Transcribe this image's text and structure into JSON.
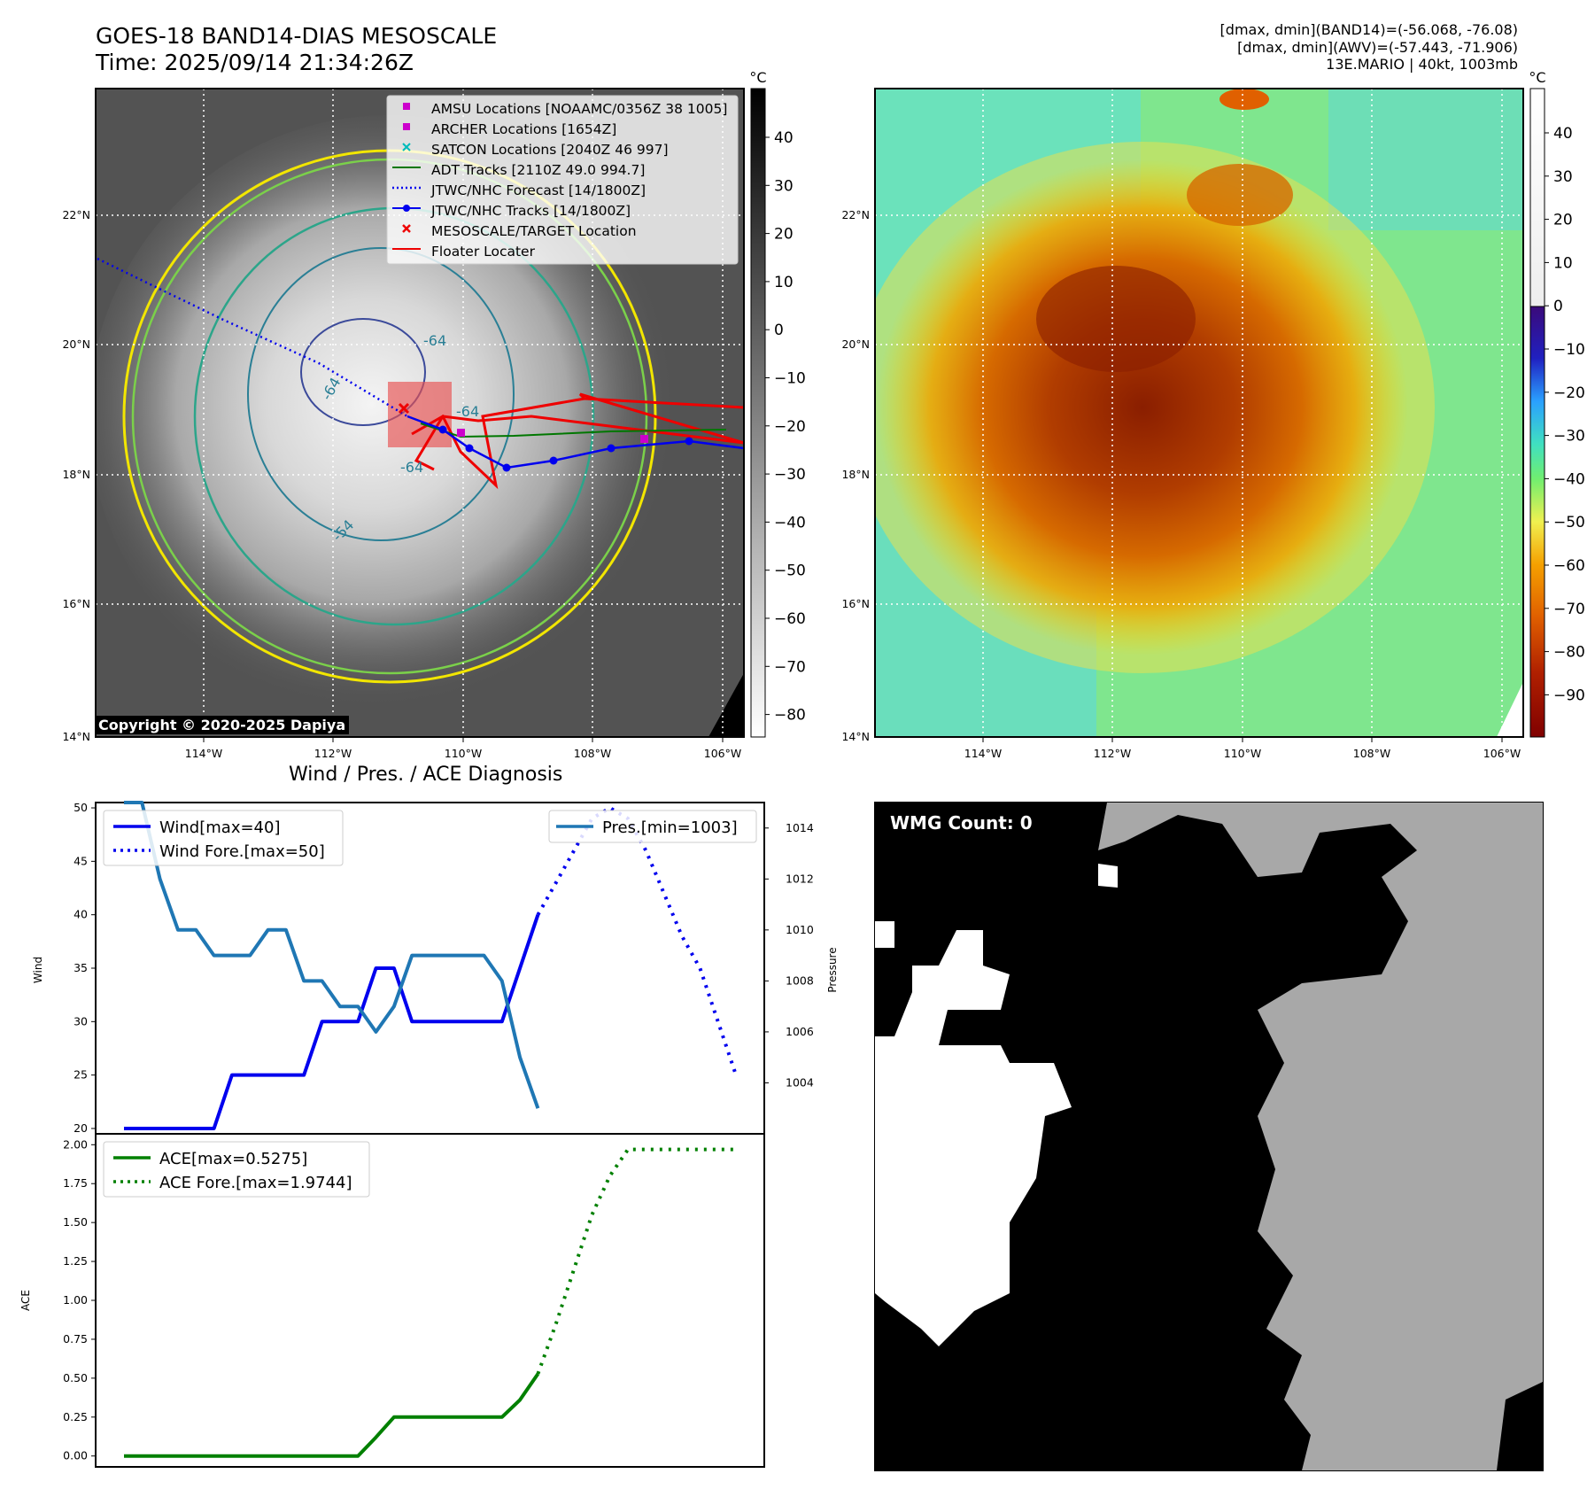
{
  "header": {
    "title_line1": "GOES-18 BAND14-DIAS MESOSCALE",
    "title_line2": "Time: 2025/09/14 21:34:26Z",
    "info_line1": "[dmax, dmin](BAND14)=(-56.068, -76.08)",
    "info_line2": "[dmax, dmin](AWV)=(-57.443, -71.906)",
    "info_line3": "13E.MARIO | 40kt, 1003mb"
  },
  "copyright": "Copyright © 2020-2025 Dapiya",
  "maps": {
    "lon_ticks": [
      "114°W",
      "112°W",
      "110°W",
      "108°W",
      "106°W"
    ],
    "lat_ticks": [
      "22°N",
      "20°N",
      "18°N",
      "16°N",
      "14°N"
    ],
    "ir_colorbar": {
      "unit": "°C",
      "ticks": [
        "40",
        "30",
        "20",
        "10",
        "0",
        "−10",
        "−20",
        "−30",
        "−40",
        "−50",
        "−60",
        "−70",
        "−80"
      ]
    },
    "color_colorbar": {
      "unit": "°C",
      "ticks": [
        "40",
        "30",
        "20",
        "10",
        "0",
        "−10",
        "−20",
        "−30",
        "−40",
        "−50",
        "−60",
        "−70",
        "−80",
        "−90"
      ]
    },
    "contour_labels": [
      "-64",
      "-64",
      "-64",
      "-64",
      "-54"
    ],
    "legend": [
      {
        "label": "AMSU Locations [NOAAMC/0356Z 38 1005]",
        "color": "#cc00cc",
        "marker": "square"
      },
      {
        "label": "ARCHER Locations [1654Z]",
        "color": "#cc00cc",
        "marker": "square"
      },
      {
        "label": "SATCON Locations [2040Z 46 997]",
        "color": "#00bbbb",
        "marker": "x"
      },
      {
        "label": "ADT Tracks [2110Z 49.0 994.7]",
        "color": "#007700",
        "marker": "line"
      },
      {
        "label": "JTWC/NHC Forecast [14/1800Z]",
        "color": "#0000ee",
        "marker": "dotted"
      },
      {
        "label": "JTWC/NHC Tracks [14/1800Z]",
        "color": "#0000ee",
        "marker": "line-dot"
      },
      {
        "label": "MESOSCALE/TARGET Location",
        "color": "#ee0000",
        "marker": "x"
      },
      {
        "label": "Floater Locater",
        "color": "#ee0000",
        "marker": "line"
      }
    ]
  },
  "wmg": {
    "label": "WMG Count: 0"
  },
  "chart_data": [
    {
      "type": "line",
      "title": "Wind / Pres. / ACE Diagnosis",
      "ylabel": "Wind",
      "y2label": "Pressure",
      "ylim": [
        19.5,
        50.5
      ],
      "y2lim": [
        1002.0,
        1015.0
      ],
      "yticks": [
        "20",
        "25",
        "30",
        "35",
        "40",
        "45",
        "50"
      ],
      "y2ticks": [
        "1004",
        "1006",
        "1008",
        "1010",
        "1012",
        "1014"
      ],
      "series": [
        {
          "name": "Wind[max=40]",
          "color": "#0000ee",
          "style": "solid",
          "x": [
            0,
            1,
            2,
            3,
            4,
            5,
            6,
            7,
            8,
            9,
            10,
            11,
            12,
            13,
            14,
            15,
            16,
            17,
            18,
            19,
            20,
            21,
            22,
            23
          ],
          "values": [
            20,
            20,
            20,
            20,
            20,
            20,
            25,
            25,
            25,
            25,
            25,
            30,
            30,
            30,
            35,
            35,
            30,
            30,
            30,
            30,
            30,
            30,
            35,
            40
          ]
        },
        {
          "name": "Wind Fore.[max=50]",
          "color": "#0000ee",
          "style": "dotted",
          "x": [
            23,
            24,
            25,
            26,
            27,
            28,
            29,
            30,
            31,
            32,
            33,
            34
          ],
          "values": [
            40,
            43,
            46,
            49,
            50,
            49,
            46,
            42,
            38,
            35,
            30,
            25
          ]
        },
        {
          "name": "Pres.[min=1003]",
          "color": "#1f77b4",
          "style": "solid",
          "axis": "right",
          "x": [
            0,
            1,
            2,
            3,
            4,
            5,
            6,
            7,
            8,
            9,
            10,
            11,
            12,
            13,
            14,
            15,
            16,
            17,
            18,
            19,
            20,
            21,
            22,
            23
          ],
          "values": [
            1015,
            1015,
            1012,
            1010,
            1010,
            1009,
            1009,
            1009,
            1010,
            1010,
            1008,
            1008,
            1007,
            1007,
            1006,
            1007,
            1009,
            1009,
            1009,
            1009,
            1009,
            1008,
            1005,
            1003
          ]
        }
      ]
    },
    {
      "type": "line",
      "ylabel": "ACE",
      "ylim": [
        -0.07,
        2.07
      ],
      "yticks": [
        "0.00",
        "0.25",
        "0.50",
        "0.75",
        "1.00",
        "1.25",
        "1.50",
        "1.75",
        "2.00"
      ],
      "series": [
        {
          "name": "ACE[max=0.5275]",
          "color": "#008000",
          "style": "solid",
          "x": [
            0,
            1,
            2,
            3,
            4,
            5,
            6,
            7,
            8,
            9,
            10,
            11,
            12,
            13,
            14,
            15,
            16,
            17,
            18,
            19,
            20,
            21,
            22,
            23
          ],
          "values": [
            0,
            0,
            0,
            0,
            0,
            0,
            0,
            0,
            0,
            0,
            0,
            0,
            0,
            0,
            0.12,
            0.25,
            0.25,
            0.25,
            0.25,
            0.25,
            0.25,
            0.25,
            0.36,
            0.5275
          ]
        },
        {
          "name": "ACE Fore.[max=1.9744]",
          "color": "#008000",
          "style": "dotted",
          "x": [
            23,
            24,
            25,
            26,
            27,
            28,
            29,
            30,
            31,
            32,
            33,
            34
          ],
          "values": [
            0.5275,
            0.85,
            1.2,
            1.55,
            1.8,
            1.97,
            1.97,
            1.97,
            1.97,
            1.97,
            1.97,
            1.97
          ]
        }
      ]
    }
  ]
}
